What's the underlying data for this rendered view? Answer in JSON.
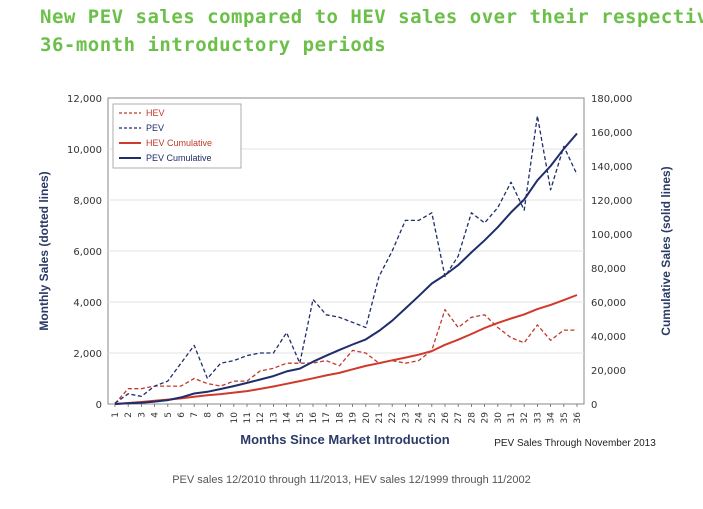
{
  "page": {
    "title_line1": "New PEV sales compared to HEV sales over their respective",
    "title_line2": "36-month introductory periods",
    "caption": "PEV sales 12/2010 through 11/2013, HEV sales 12/1999 through 11/2002",
    "note": "PEV Sales Through November 2013"
  },
  "chart_data": {
    "type": "line",
    "xlabel": "Months Since Market Introduction",
    "ylabel_left": "Monthly Sales (dotted lines)",
    "ylabel_right": "Cumulative Sales (solid lines)",
    "x": [
      1,
      2,
      3,
      4,
      5,
      6,
      7,
      8,
      9,
      10,
      11,
      12,
      13,
      14,
      15,
      16,
      17,
      18,
      19,
      20,
      21,
      22,
      23,
      24,
      25,
      26,
      27,
      28,
      29,
      30,
      31,
      32,
      33,
      34,
      35,
      36
    ],
    "y_left_range": [
      0,
      12000
    ],
    "y_left_ticks": [
      "0",
      "2,000",
      "4,000",
      "6,000",
      "8,000",
      "10,000",
      "12,000"
    ],
    "y_right_range": [
      0,
      180000
    ],
    "y_right_ticks": [
      "0",
      "20,000",
      "40,000",
      "60,000",
      "80,000",
      "100,000",
      "120,000",
      "140,000",
      "160,000",
      "180,000"
    ],
    "series": [
      {
        "name": "HEV",
        "axis": "left",
        "style": "dashed",
        "color": "#c0392b",
        "values": [
          20,
          600,
          600,
          700,
          700,
          700,
          1000,
          800,
          700,
          900,
          900,
          1300,
          1400,
          1600,
          1600,
          1600,
          1700,
          1500,
          2100,
          2000,
          1600,
          1700,
          1600,
          1700,
          2100,
          3700,
          3000,
          3400,
          3500,
          3000,
          2600,
          2400,
          3100,
          2500,
          2900,
          2900
        ]
      },
      {
        "name": "PEV",
        "axis": "left",
        "style": "dashed",
        "color": "#1f2d6b",
        "values": [
          30,
          400,
          300,
          700,
          900,
          1600,
          2300,
          1000,
          1600,
          1700,
          1900,
          2000,
          2000,
          2800,
          1600,
          4100,
          3500,
          3400,
          3200,
          3000,
          5000,
          6000,
          7200,
          7200,
          7500,
          5000,
          5800,
          7500,
          7100,
          7700,
          8700,
          7600,
          11300,
          8400,
          10100,
          9000
        ]
      },
      {
        "name": "HEV Cumulative",
        "axis": "right",
        "style": "solid",
        "color": "#d0392b",
        "values": [
          0,
          600,
          1200,
          1900,
          2600,
          3300,
          4300,
          5100,
          5800,
          6700,
          7600,
          8900,
          10300,
          11900,
          13500,
          15100,
          16800,
          18300,
          20400,
          22400,
          24000,
          25700,
          27300,
          29000,
          31100,
          34800,
          37800,
          41200,
          44700,
          47700,
          50300,
          52700,
          55800,
          58300,
          61200,
          64100
        ]
      },
      {
        "name": "PEV Cumulative",
        "axis": "right",
        "style": "solid",
        "color": "#1f2d6b",
        "values": [
          0,
          400,
          700,
          1400,
          2300,
          3900,
          6200,
          7200,
          8800,
          10500,
          12400,
          14400,
          16400,
          19200,
          20800,
          24900,
          28400,
          31800,
          35000,
          38000,
          43000,
          49000,
          56200,
          63400,
          70900,
          75900,
          81700,
          89200,
          96300,
          104000,
          112700,
          120300,
          131600,
          140000,
          150100,
          159100
        ]
      }
    ]
  }
}
